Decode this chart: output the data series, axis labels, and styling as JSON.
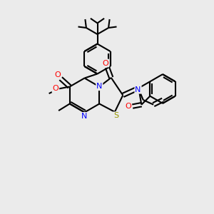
{
  "bg_color": "#ebebeb",
  "line_color": "#000000",
  "bond_width": 1.5,
  "atom_colors": {
    "O": "#ff0000",
    "N": "#0000ff",
    "S": "#999900",
    "C": "#000000"
  },
  "font_size": 8.0
}
